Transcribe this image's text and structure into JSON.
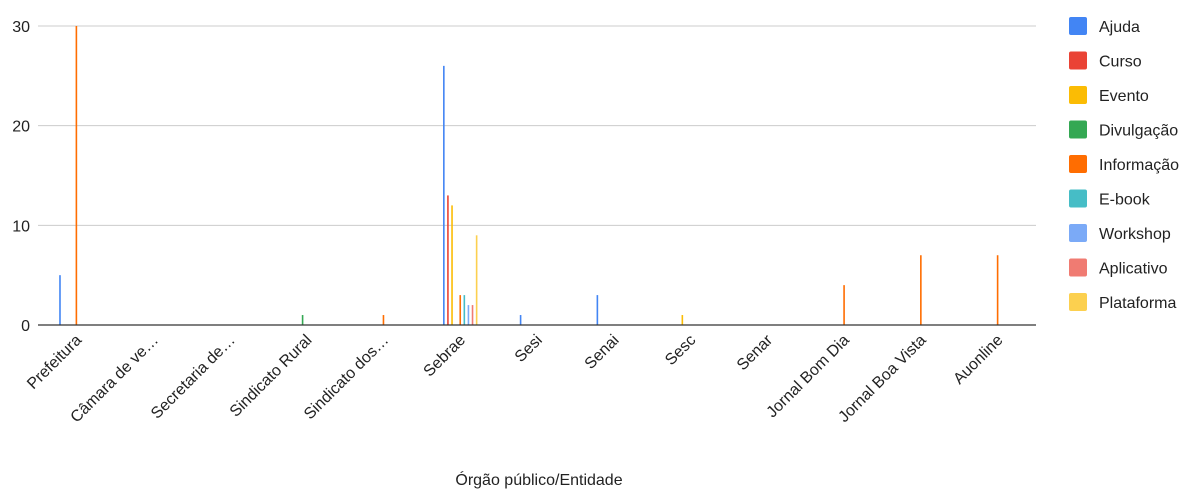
{
  "chart_data": {
    "type": "bar",
    "title": "",
    "xlabel": "Órgão público/Entidade",
    "ylabel": "",
    "ylim": [
      0,
      30
    ],
    "yticks": [
      0,
      10,
      20,
      30
    ],
    "grid": true,
    "legend_position": "right",
    "categories": [
      "Prefeitura",
      "Câmara de ve…",
      "Secretaria de…",
      "Sindicato Rural",
      "Sindicato dos…",
      "Sebrae",
      "Sesi",
      "Senai",
      "Sesc",
      "Senar",
      "Jornal Bom Dia",
      "Jornal Boa Vista",
      "Auonline"
    ],
    "series": [
      {
        "name": "Ajuda",
        "color": "#4285f4",
        "values": [
          5,
          0,
          0,
          0,
          0,
          26,
          1,
          3,
          0,
          0,
          0,
          0,
          0
        ]
      },
      {
        "name": "Curso",
        "color": "#ea4335",
        "values": [
          0,
          0,
          0,
          0,
          0,
          13,
          0,
          0,
          0,
          0,
          0,
          0,
          0
        ]
      },
      {
        "name": "Evento",
        "color": "#fbbc04",
        "values": [
          0,
          0,
          0,
          0,
          0,
          12,
          0,
          0,
          1,
          0,
          0,
          0,
          0
        ]
      },
      {
        "name": "Divulgação",
        "color": "#34a853",
        "values": [
          0,
          0,
          0,
          1,
          0,
          0,
          0,
          0,
          0,
          0,
          0,
          0,
          0
        ]
      },
      {
        "name": "Informação",
        "color": "#ff6d01",
        "values": [
          30,
          0,
          0,
          0,
          1,
          3,
          0,
          0,
          0,
          0,
          4,
          7,
          7
        ]
      },
      {
        "name": "E-book",
        "color": "#46bdc6",
        "values": [
          0,
          0,
          0,
          0,
          0,
          3,
          0,
          0,
          0,
          0,
          0,
          0,
          0
        ]
      },
      {
        "name": "Workshop",
        "color": "#7baaf7",
        "values": [
          0,
          0,
          0,
          0,
          0,
          2,
          0,
          0,
          0,
          0,
          0,
          0,
          0
        ]
      },
      {
        "name": "Aplicativo",
        "color": "#f07b72",
        "values": [
          0,
          0,
          0,
          0,
          0,
          2,
          0,
          0,
          0,
          0,
          0,
          0,
          0
        ]
      },
      {
        "name": "Plataforma",
        "color": "#fcd04f",
        "values": [
          0,
          0,
          0,
          0,
          0,
          9,
          0,
          0,
          0,
          0,
          0,
          0,
          0
        ]
      }
    ]
  }
}
